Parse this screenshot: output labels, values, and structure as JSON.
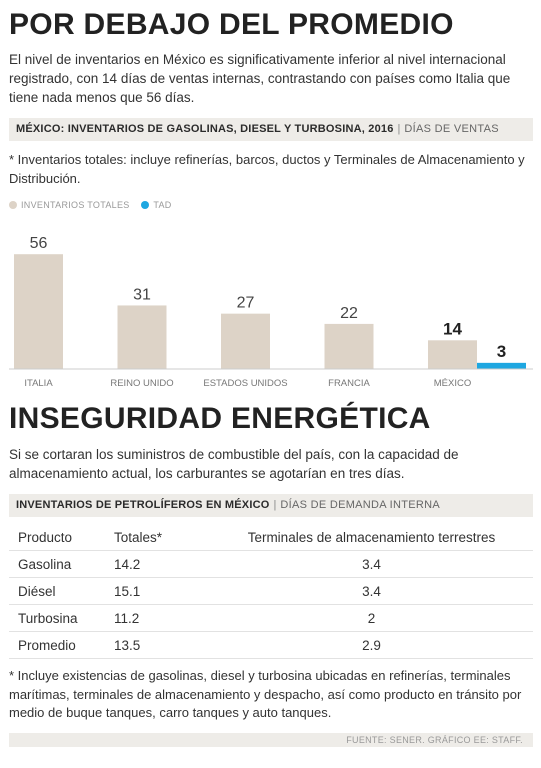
{
  "section1": {
    "title": "POR DEBAJO DEL PROMEDIO",
    "lead": "El nivel de inventarios en México es significativamente inferior al nivel internacional registrado, con 14 días de ventas internas, contrastando con países como Italia que tiene nada menos que 56 días.",
    "band_title": "MÉXICO: INVENTARIOS DE GASOLINAS, DIESEL Y TURBOSINA, 2016",
    "band_sep": "|",
    "band_unit": "DÍAS DE VENTAS",
    "note": "* Inventarios totales: incluye refinerías, barcos, ductos y Terminales de Almacenamiento y Distribución."
  },
  "colors": {
    "totales": "#ddd3c7",
    "tad": "#1ea7e1",
    "band": "#eeece8"
  },
  "chart_data": {
    "type": "bar",
    "categories": [
      "ITALIA",
      "REINO UNIDO",
      "ESTADOS UNIDOS",
      "FRANCIA",
      "MÉXICO"
    ],
    "series": [
      {
        "name": "INVENTARIOS TOTALES",
        "values": [
          56,
          31,
          27,
          22,
          14
        ]
      },
      {
        "name": "TAD",
        "values": [
          null,
          null,
          null,
          null,
          3
        ]
      }
    ],
    "value_labels": [
      "56",
      "31",
      "27",
      "22",
      "14",
      "3"
    ],
    "ylim": [
      0,
      60
    ],
    "legend": "top-left",
    "grid": false
  },
  "section2": {
    "title": "INSEGURIDAD ENERGÉTICA",
    "lead": "Si se cortaran los suministros de combustible del país, con la capacidad de almacenamiento actual, los carburantes se agotarían en tres días.",
    "band_title": "INVENTARIOS DE PETROLÍFEROS EN MÉXICO",
    "band_sep": "|",
    "band_unit": "DÍAS DE DEMANDA INTERNA",
    "table": {
      "headers": [
        "Producto",
        "Totales*",
        "Terminales de almacenamiento terrestres"
      ],
      "rows": [
        [
          "Gasolina",
          "14.2",
          "3.4"
        ],
        [
          "Diésel",
          "15.1",
          "3.4"
        ],
        [
          "Turbosina",
          "11.2",
          "2"
        ],
        [
          "Promedio",
          "13.5",
          "2.9"
        ]
      ]
    },
    "note": "* Incluye existencias de gasolinas, diesel y turbosina ubicadas en refinerías, terminales marítimas, terminales de almacenamiento y despacho, así como producto en tránsito por medio de buque tanques, carro tanques y auto tanques."
  },
  "footer": {
    "source": "FUENTE: SENER. GRÁFICO EE: STAFF."
  }
}
